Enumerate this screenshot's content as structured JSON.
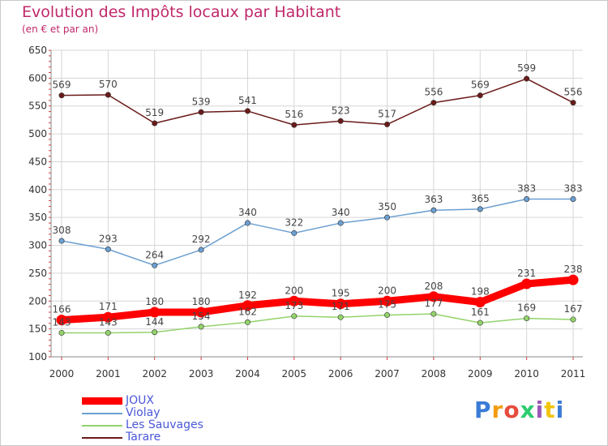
{
  "title": "Evolution des Impôts locaux par Habitant",
  "subtitle": "(en € et par an)",
  "logo_text": "Proxiti",
  "chart_data": {
    "type": "line",
    "categories": [
      "2000",
      "2001",
      "2002",
      "2003",
      "2004",
      "2005",
      "2006",
      "2007",
      "2008",
      "2009",
      "2010",
      "2011"
    ],
    "ylim": [
      100,
      650
    ],
    "yticks": [
      100,
      150,
      200,
      250,
      300,
      350,
      400,
      450,
      500,
      550,
      600,
      650
    ],
    "grid": true,
    "legend_position": "bottom-left",
    "series": [
      {
        "name": "JOUX",
        "color": "#ff0000",
        "values": [
          166,
          171,
          180,
          180,
          192,
          200,
          195,
          200,
          208,
          198,
          231,
          238
        ]
      },
      {
        "name": "Violay",
        "color": "#6b9fd1",
        "values": [
          308,
          293,
          264,
          292,
          340,
          322,
          340,
          350,
          363,
          365,
          383,
          383
        ]
      },
      {
        "name": "Les Sauvages",
        "color": "#93d36b",
        "values": [
          143,
          143,
          144,
          154,
          162,
          173,
          171,
          175,
          177,
          161,
          169,
          167
        ]
      },
      {
        "name": "Tarare",
        "color": "#6b1a1a",
        "values": [
          569,
          570,
          519,
          539,
          541,
          516,
          523,
          517,
          556,
          569,
          599,
          556
        ]
      }
    ]
  }
}
